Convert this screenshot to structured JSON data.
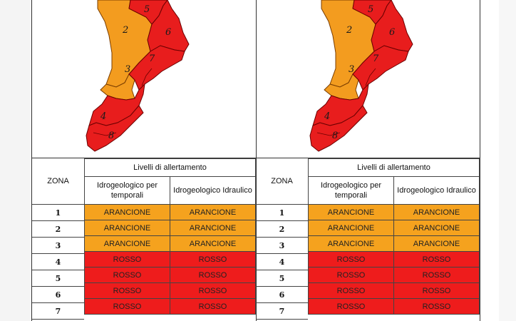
{
  "panels": [
    {
      "table": {
        "zona_header": "ZONA",
        "group_header": "Livelli di allertamento",
        "col1_header": "Idrogeologico per temporali",
        "col2_header": "Idrogeologico Idraulico",
        "rows": [
          {
            "zona": "1",
            "col1": "ARANCIONE",
            "col2": "ARANCIONE"
          },
          {
            "zona": "2",
            "col1": "ARANCIONE",
            "col2": "ARANCIONE"
          },
          {
            "zona": "3",
            "col1": "ARANCIONE",
            "col2": "ARANCIONE"
          },
          {
            "zona": "4",
            "col1": "ROSSO",
            "col2": "ROSSO"
          },
          {
            "zona": "5",
            "col1": "ROSSO",
            "col2": "ROSSO"
          },
          {
            "zona": "6",
            "col1": "ROSSO",
            "col2": "ROSSO"
          },
          {
            "zona": "7",
            "col1": "ROSSO",
            "col2": "ROSSO"
          }
        ]
      },
      "map_labels": [
        "5",
        "2",
        "6",
        "7",
        "3",
        "4",
        "8"
      ]
    },
    {
      "table": {
        "zona_header": "ZONA",
        "group_header": "Livelli di allertamento",
        "col1_header": "Idrogeologico per temporali",
        "col2_header": "Idrogeologico Idraulico",
        "rows": [
          {
            "zona": "1",
            "col1": "ARANCIONE",
            "col2": "ARANCIONE"
          },
          {
            "zona": "2",
            "col1": "ARANCIONE",
            "col2": "ARANCIONE"
          },
          {
            "zona": "3",
            "col1": "ARANCIONE",
            "col2": "ARANCIONE"
          },
          {
            "zona": "4",
            "col1": "ROSSO",
            "col2": "ROSSO"
          },
          {
            "zona": "5",
            "col1": "ROSSO",
            "col2": "ROSSO"
          },
          {
            "zona": "6",
            "col1": "ROSSO",
            "col2": "ROSSO"
          },
          {
            "zona": "7",
            "col1": "ROSSO",
            "col2": "ROSSO"
          }
        ]
      },
      "map_labels": [
        "5",
        "2",
        "6",
        "7",
        "3",
        "4",
        "8"
      ]
    }
  ],
  "colors": {
    "arancione": "#f5a21e",
    "rosso": "#ee1c1c",
    "map_orange": "#f39c1f",
    "map_red": "#e81d1d"
  }
}
